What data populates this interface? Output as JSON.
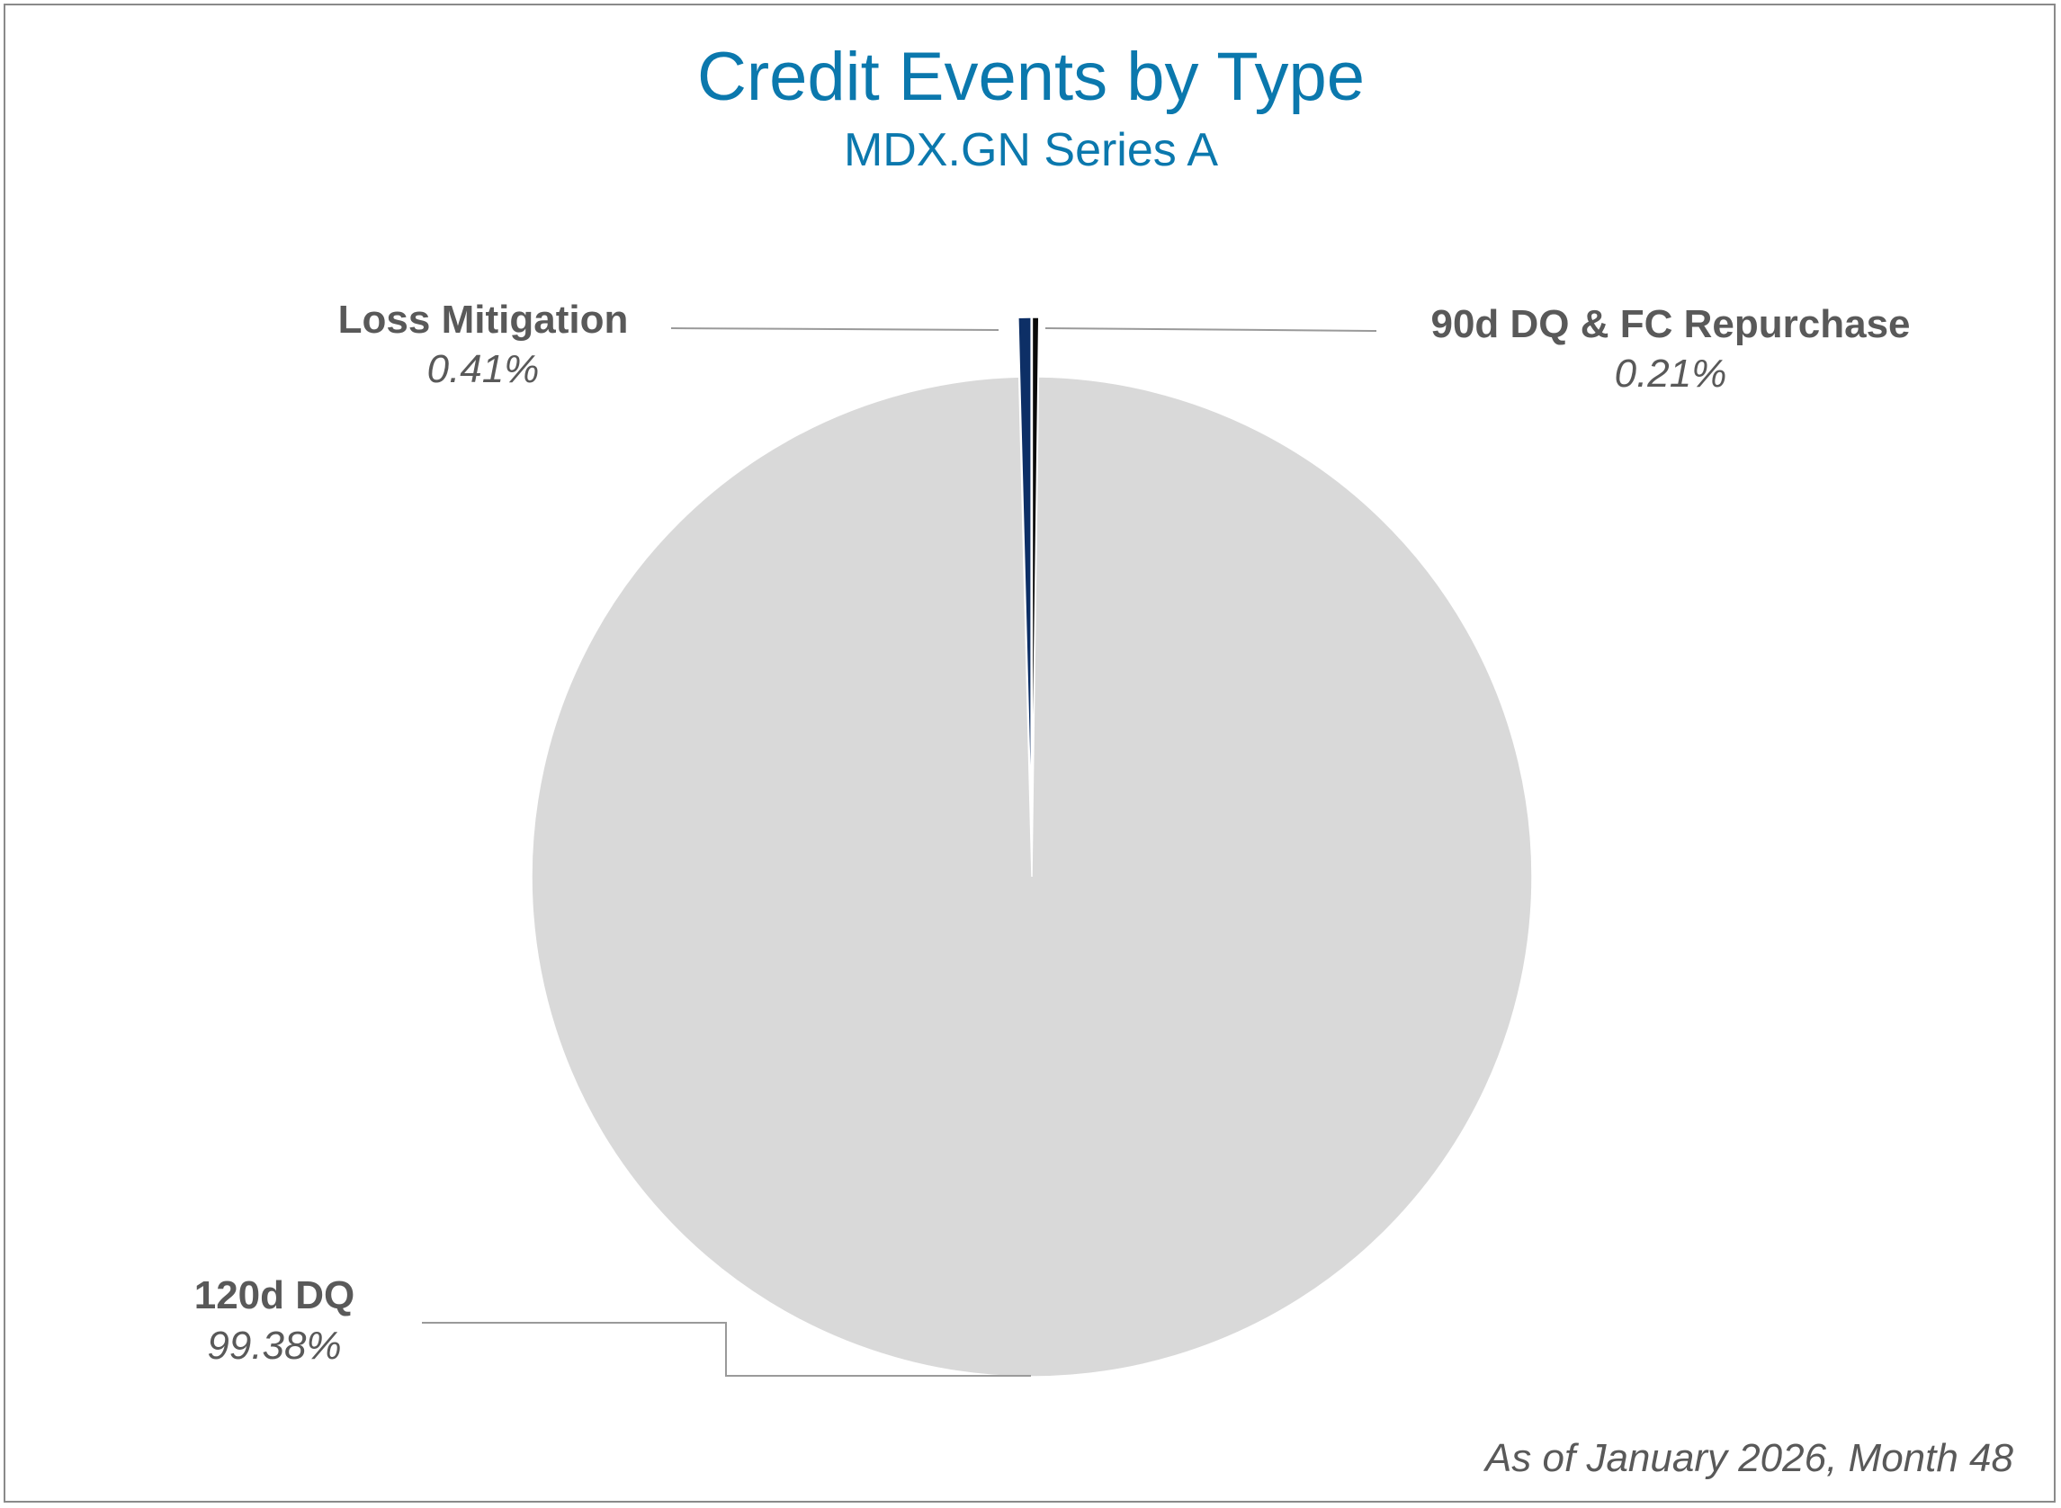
{
  "chart_data": {
    "type": "pie",
    "title": "Credit Events by Type",
    "subtitle": "MDX.GN Series A",
    "slices": [
      {
        "label": "90d DQ & FC Repurchase",
        "value": 0.21,
        "value_label": "0.21%",
        "color": "#0a0a0a"
      },
      {
        "label": "120d DQ",
        "value": 99.38,
        "value_label": "99.38%",
        "color": "#d9d9d9"
      },
      {
        "label": "Loss Mitigation",
        "value": 0.41,
        "value_label": "0.41%",
        "color": "#0d2f66"
      }
    ],
    "start_angle": "12 o'clock",
    "direction": "clockwise",
    "legend": "none",
    "footnote": "As of January 2026, Month 48"
  }
}
